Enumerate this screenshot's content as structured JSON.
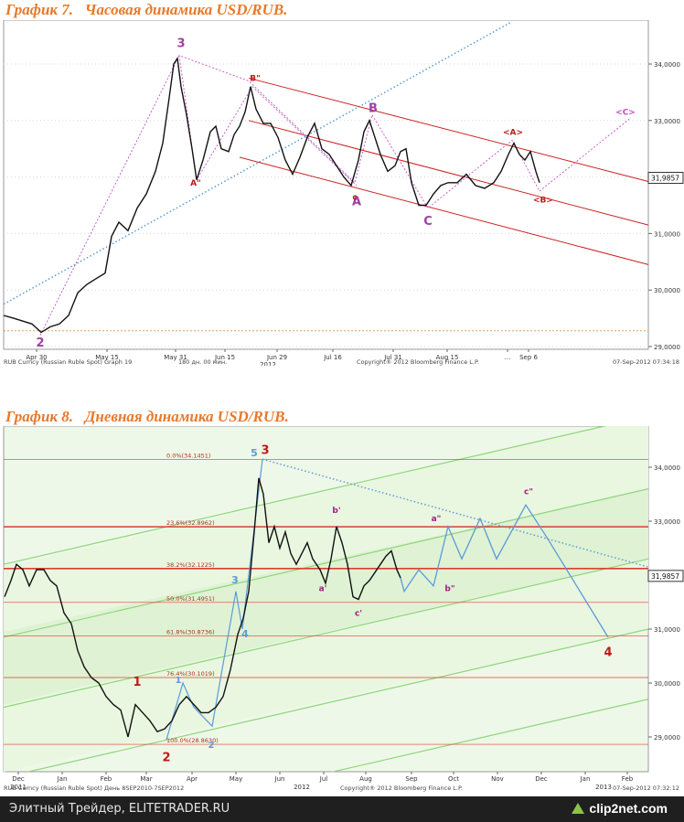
{
  "footer": {
    "site": "Элитный Трейдер, ELITETRADER.RU",
    "logo": "clip2net.com"
  },
  "chart_data": [
    {
      "type": "line",
      "title": "График 7.   Часовая динамика USD/RUB.",
      "yticks": [
        "34,0000",
        "33,0000",
        "32,0000",
        "31,0000",
        "30,0000",
        "29,0000"
      ],
      "ylim": [
        28.65,
        34.75
      ],
      "xticks": [
        "Apr 30",
        "May 15",
        "May 31",
        "Jun 15",
        "Jun 29",
        "Jul 16",
        "Jul 31",
        "Aug 15",
        "...",
        "Sep 6"
      ],
      "year_label": "2012",
      "last_price": "31,9857",
      "footer_left": "RUB Curncy (Russian Ruble Spot) Graph 19",
      "footer_mid1": "180 дн. 00 мин.",
      "footer_mid2": "Copyright® 2012 Bloomberg Finance L.P.",
      "footer_right": "07-Sep-2012 07:34:18",
      "price_path": [
        [
          4,
          29.55
        ],
        [
          15,
          29.5
        ],
        [
          25,
          29.45
        ],
        [
          35,
          29.4
        ],
        [
          45,
          29.25
        ],
        [
          55,
          29.35
        ],
        [
          65,
          29.4
        ],
        [
          75,
          29.55
        ],
        [
          85,
          29.95
        ],
        [
          95,
          30.1
        ],
        [
          105,
          30.2
        ],
        [
          115,
          30.3
        ],
        [
          122,
          30.95
        ],
        [
          130,
          31.2
        ],
        [
          140,
          31.05
        ],
        [
          150,
          31.45
        ],
        [
          160,
          31.7
        ],
        [
          170,
          32.1
        ],
        [
          178,
          32.6
        ],
        [
          185,
          33.4
        ],
        [
          190,
          34.0
        ],
        [
          194,
          34.1
        ],
        [
          198,
          33.6
        ],
        [
          204,
          33.1
        ],
        [
          210,
          32.5
        ],
        [
          215,
          31.95
        ],
        [
          222,
          32.3
        ],
        [
          230,
          32.8
        ],
        [
          236,
          32.9
        ],
        [
          242,
          32.5
        ],
        [
          250,
          32.45
        ],
        [
          256,
          32.75
        ],
        [
          262,
          32.9
        ],
        [
          268,
          33.15
        ],
        [
          274,
          33.6
        ],
        [
          280,
          33.2
        ],
        [
          288,
          32.95
        ],
        [
          296,
          32.95
        ],
        [
          304,
          32.7
        ],
        [
          312,
          32.3
        ],
        [
          320,
          32.05
        ],
        [
          328,
          32.35
        ],
        [
          336,
          32.7
        ],
        [
          344,
          32.95
        ],
        [
          352,
          32.5
        ],
        [
          360,
          32.4
        ],
        [
          368,
          32.2
        ],
        [
          376,
          32.0
        ],
        [
          384,
          31.85
        ],
        [
          392,
          32.3
        ],
        [
          398,
          32.8
        ],
        [
          404,
          33.0
        ],
        [
          410,
          32.7
        ],
        [
          416,
          32.4
        ],
        [
          424,
          32.1
        ],
        [
          432,
          32.2
        ],
        [
          438,
          32.45
        ],
        [
          444,
          32.5
        ],
        [
          450,
          31.9
        ],
        [
          458,
          31.5
        ],
        [
          466,
          31.5
        ],
        [
          474,
          31.7
        ],
        [
          482,
          31.85
        ],
        [
          490,
          31.9
        ],
        [
          500,
          31.9
        ],
        [
          510,
          32.05
        ],
        [
          520,
          31.85
        ],
        [
          530,
          31.8
        ],
        [
          540,
          31.9
        ],
        [
          548,
          32.1
        ],
        [
          556,
          32.4
        ],
        [
          562,
          32.6
        ],
        [
          568,
          32.4
        ],
        [
          574,
          32.3
        ],
        [
          580,
          32.45
        ],
        [
          586,
          32.1
        ],
        [
          590,
          31.9
        ]
      ]
    },
    {
      "type": "line",
      "title": "График 8.   Дневная динамика USD/RUB.",
      "yticks": [
        "34,0000",
        "33,0000",
        "32,0000",
        "31,0000",
        "30,0000",
        "29,0000"
      ],
      "ylim": [
        28.5,
        35.0
      ],
      "xticks": [
        "Dec",
        "Jan",
        "Feb",
        "Mar",
        "Apr",
        "May",
        "Jun",
        "Jul",
        "Aug",
        "Sep",
        "Oct",
        "Nov",
        "Dec",
        "Jan",
        "Feb"
      ],
      "year_labels": [
        "2011",
        "2012",
        "2013"
      ],
      "last_price": "31,9857",
      "fib_levels": [
        {
          "label": "0.0%(34.1451)",
          "value": 34.1451
        },
        {
          "label": "23.6%(32.8962)",
          "value": 32.8962
        },
        {
          "label": "38.2%(32.1225)",
          "value": 32.1225
        },
        {
          "label": "50.0%(31.4951)",
          "value": 31.4951
        },
        {
          "label": "61.8%(30.8736)",
          "value": 30.8736
        },
        {
          "label": "76.4%(30.1019)",
          "value": 30.1019
        },
        {
          "label": "100.0%(28.8630)",
          "value": 28.863
        }
      ],
      "footer_left": "RUB Curncy (Russian Ruble Spot) День 8SEP2010-7SEP2012",
      "footer_mid": "Copyright® 2012 Bloomberg Finance L.P.",
      "footer_right": "07-Sep-2012 07:32:12",
      "price_path": [
        [
          5,
          31.6
        ],
        [
          12,
          31.9
        ],
        [
          18,
          32.2
        ],
        [
          25,
          32.1
        ],
        [
          32,
          31.8
        ],
        [
          40,
          32.1
        ],
        [
          48,
          32.1
        ],
        [
          55,
          31.9
        ],
        [
          62,
          31.8
        ],
        [
          70,
          31.3
        ],
        [
          78,
          31.1
        ],
        [
          85,
          30.6
        ],
        [
          92,
          30.3
        ],
        [
          100,
          30.1
        ],
        [
          108,
          30.0
        ],
        [
          116,
          29.75
        ],
        [
          124,
          29.6
        ],
        [
          132,
          29.5
        ],
        [
          140,
          29.0
        ],
        [
          148,
          29.6
        ],
        [
          156,
          29.45
        ],
        [
          164,
          29.3
        ],
        [
          172,
          29.1
        ],
        [
          180,
          29.15
        ],
        [
          188,
          29.3
        ],
        [
          196,
          29.6
        ],
        [
          204,
          29.75
        ],
        [
          212,
          29.6
        ],
        [
          220,
          29.45
        ],
        [
          228,
          29.45
        ],
        [
          236,
          29.55
        ],
        [
          244,
          29.75
        ],
        [
          252,
          30.25
        ],
        [
          260,
          30.9
        ],
        [
          266,
          31.2
        ],
        [
          272,
          31.7
        ],
        [
          278,
          32.8
        ],
        [
          283,
          33.8
        ],
        [
          288,
          33.5
        ],
        [
          294,
          32.6
        ],
        [
          300,
          32.9
        ],
        [
          306,
          32.5
        ],
        [
          312,
          32.8
        ],
        [
          318,
          32.4
        ],
        [
          324,
          32.2
        ],
        [
          330,
          32.4
        ],
        [
          336,
          32.6
        ],
        [
          342,
          32.3
        ],
        [
          350,
          32.1
        ],
        [
          356,
          31.85
        ],
        [
          362,
          32.3
        ],
        [
          368,
          32.9
        ],
        [
          374,
          32.6
        ],
        [
          380,
          32.2
        ],
        [
          386,
          31.6
        ],
        [
          392,
          31.55
        ],
        [
          398,
          31.8
        ],
        [
          404,
          31.9
        ],
        [
          410,
          32.05
        ],
        [
          416,
          32.2
        ],
        [
          422,
          32.35
        ],
        [
          428,
          32.45
        ],
        [
          434,
          32.1
        ],
        [
          438,
          31.95
        ]
      ],
      "forecast_path": [
        [
          438,
          31.95
        ],
        [
          442,
          31.7
        ],
        [
          458,
          32.1
        ],
        [
          474,
          31.8
        ],
        [
          490,
          32.9
        ],
        [
          505,
          32.3
        ],
        [
          525,
          33.05
        ],
        [
          543,
          32.3
        ],
        [
          575,
          33.3
        ],
        [
          598,
          32.7
        ],
        [
          665,
          30.85
        ]
      ],
      "wave_path": [
        [
          182,
          28.95
        ],
        [
          200,
          30.0
        ],
        [
          212,
          29.55
        ],
        [
          232,
          29.2
        ],
        [
          258,
          31.7
        ],
        [
          265,
          31.0
        ],
        [
          287,
          34.15
        ]
      ]
    }
  ]
}
